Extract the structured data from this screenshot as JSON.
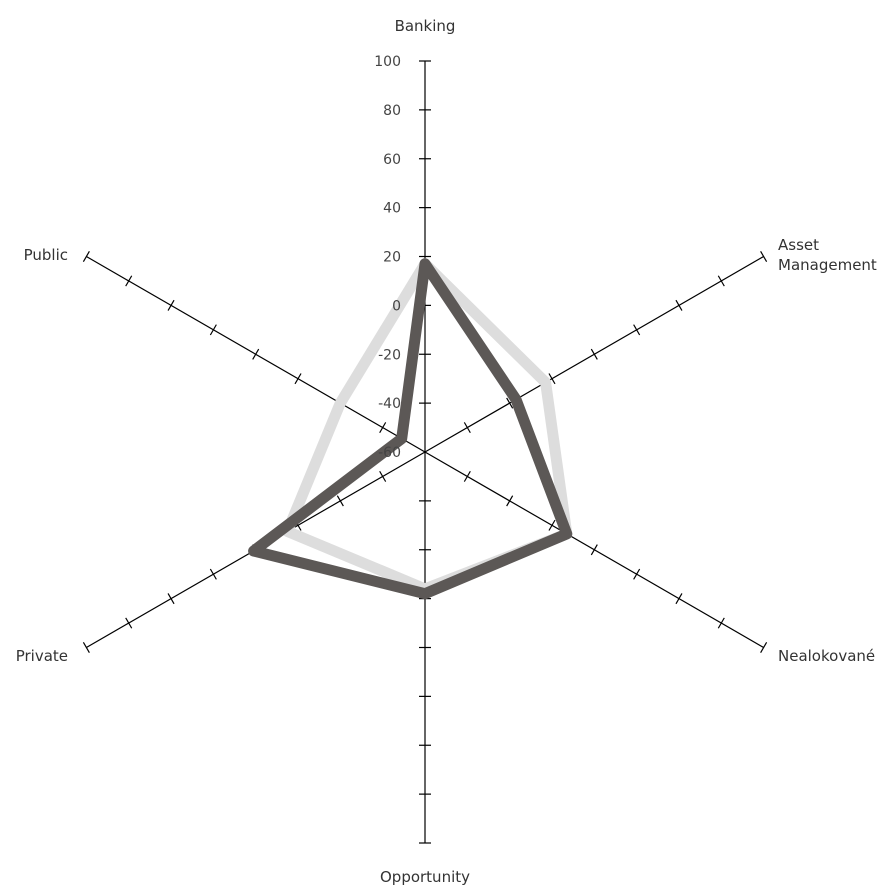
{
  "chart_data": {
    "type": "radar",
    "axes": [
      "Banking",
      "Asset Management",
      "Nealokované",
      "Opportunity",
      "Private",
      "Public"
    ],
    "axis_label_lines": [
      [
        "Banking"
      ],
      [
        "Asset",
        "Management"
      ],
      [
        "Nealokované"
      ],
      [
        "Opportunity"
      ],
      [
        "Private"
      ],
      [
        "Public"
      ]
    ],
    "range": [
      -60,
      100
    ],
    "ticks": [
      -60,
      -40,
      -20,
      0,
      20,
      40,
      60,
      80,
      100
    ],
    "tick_labels": [
      "-60",
      "-40",
      "-20",
      "0",
      "20",
      "40",
      "60",
      "80",
      "100"
    ],
    "grid": false,
    "series": [
      {
        "values": [
          17,
          -3,
          7,
          -4,
          5,
          -20
        ],
        "color": "#dddddd"
      },
      {
        "values": [
          17,
          -17,
          7,
          -2,
          21,
          -49
        ],
        "color": "#5c5856"
      }
    ]
  }
}
